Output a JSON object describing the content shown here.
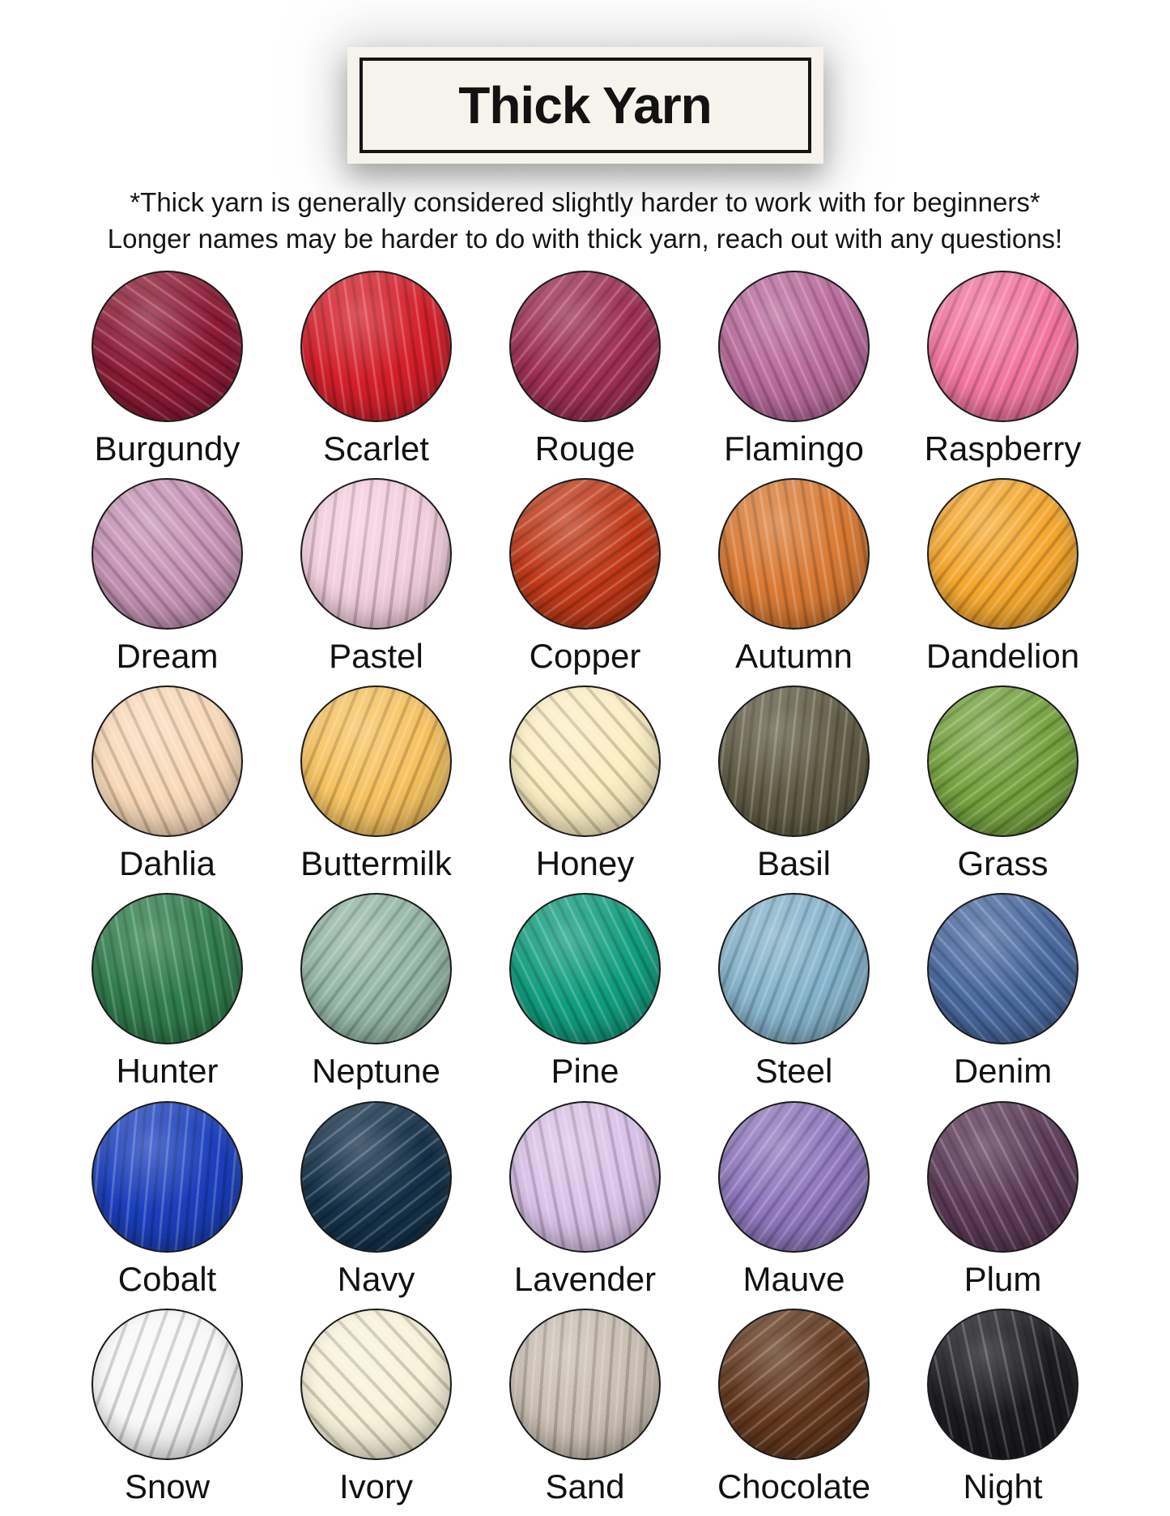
{
  "page": {
    "background": "#ffffff"
  },
  "header": {
    "title": "Thick Yarn",
    "box_background": "#f6f3ec",
    "border_color": "#141414"
  },
  "subtitle": {
    "line1": "*Thick yarn is generally considered slightly harder to work with for beginners*",
    "line2": "Longer names may be harder to do with thick yarn, reach out with any questions!"
  },
  "grid": {
    "columns": 5,
    "rows": 6
  },
  "yarns": [
    {
      "name": "Burgundy",
      "color": "#8c1a35"
    },
    {
      "name": "Scarlet",
      "color": "#d41f2a"
    },
    {
      "name": "Rouge",
      "color": "#9e2f55"
    },
    {
      "name": "Flamingo",
      "color": "#b96a9b"
    },
    {
      "name": "Raspberry",
      "color": "#f3759f"
    },
    {
      "name": "Dream",
      "color": "#c793b5"
    },
    {
      "name": "Pastel",
      "color": "#f4cedd"
    },
    {
      "name": "Copper",
      "color": "#c03918"
    },
    {
      "name": "Autumn",
      "color": "#d97a33"
    },
    {
      "name": "Dandelion",
      "color": "#f5a72d"
    },
    {
      "name": "Dahlia",
      "color": "#fad9b8"
    },
    {
      "name": "Buttermilk",
      "color": "#f6c25e"
    },
    {
      "name": "Honey",
      "color": "#fbeec2"
    },
    {
      "name": "Basil",
      "color": "#615c44"
    },
    {
      "name": "Grass",
      "color": "#74a33e"
    },
    {
      "name": "Hunter",
      "color": "#2f7d4c"
    },
    {
      "name": "Neptune",
      "color": "#93b7a7"
    },
    {
      "name": "Pine",
      "color": "#119e7e"
    },
    {
      "name": "Steel",
      "color": "#85b3cc"
    },
    {
      "name": "Denim",
      "color": "#48699f"
    },
    {
      "name": "Cobalt",
      "color": "#1b3fbd"
    },
    {
      "name": "Navy",
      "color": "#14324a"
    },
    {
      "name": "Lavender",
      "color": "#d9c2e8"
    },
    {
      "name": "Mauve",
      "color": "#8e77bd"
    },
    {
      "name": "Plum",
      "color": "#5c3a56"
    },
    {
      "name": "Snow",
      "color": "#f8f8f8"
    },
    {
      "name": "Ivory",
      "color": "#f8f2d8"
    },
    {
      "name": "Sand",
      "color": "#c9beb2"
    },
    {
      "name": "Chocolate",
      "color": "#63381d"
    },
    {
      "name": "Night",
      "color": "#1b1b20"
    }
  ]
}
